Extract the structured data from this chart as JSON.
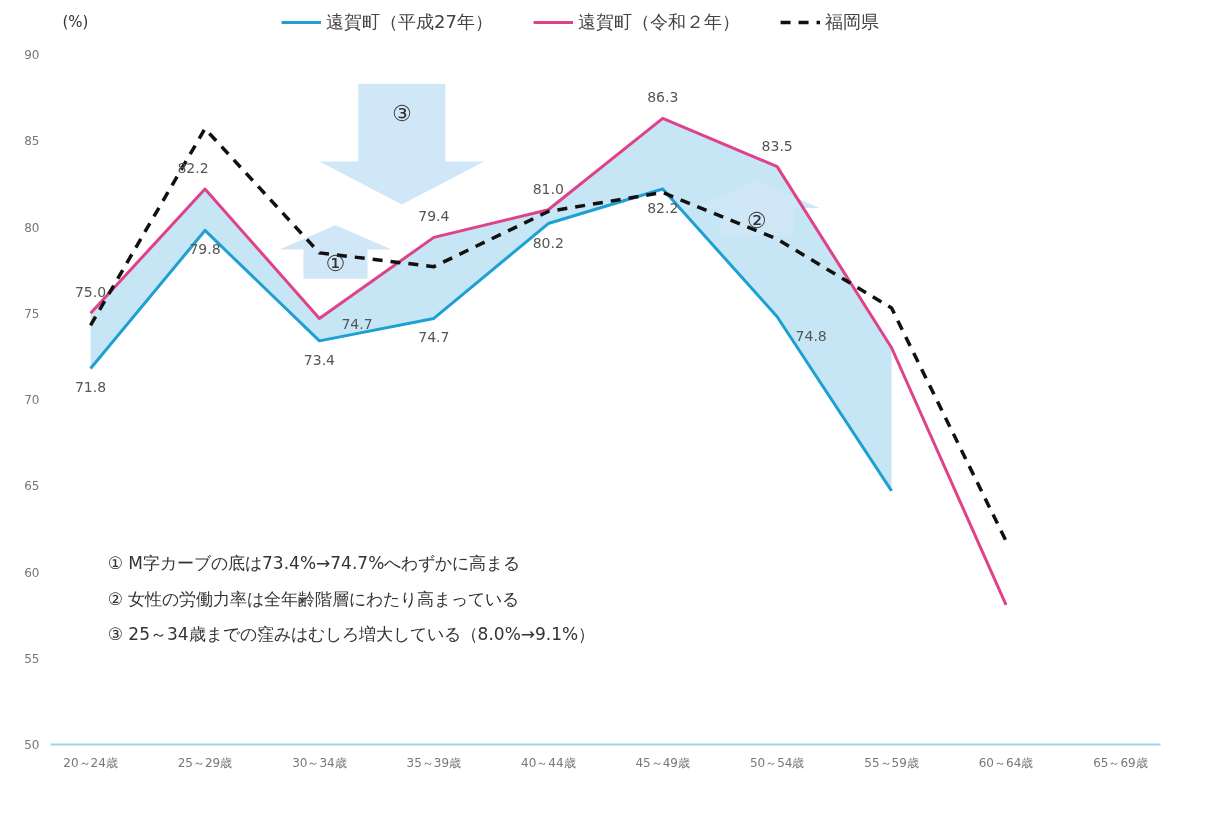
{
  "chart_data": {
    "type": "line",
    "ylabel": "(%)",
    "categories": [
      "20～24歳",
      "25～29歳",
      "30～34歳",
      "35～39歳",
      "40～44歳",
      "45～49歳",
      "50～54歳",
      "55～59歳",
      "60～64歳",
      "65～69歳"
    ],
    "series": [
      {
        "name": "遠賀町（平成27年）",
        "color": "#1ea0d2",
        "values": [
          71.8,
          79.8,
          73.4,
          74.7,
          80.2,
          82.2,
          74.8,
          64.7,
          null,
          null
        ],
        "value_labels": [
          "71.8",
          "79.8",
          "73.4",
          "74.7",
          "80.2",
          "82.2",
          "74.8",
          null,
          null,
          null
        ]
      },
      {
        "name": "遠賀町（令和２年）",
        "color": "#e0428a",
        "values": [
          75.0,
          82.2,
          74.7,
          79.4,
          81.0,
          86.3,
          83.5,
          73.0,
          58.1,
          null
        ],
        "value_labels": [
          "75.0",
          "82.2",
          "74.7",
          "79.4",
          "81.0",
          "86.3",
          "83.5",
          null,
          null,
          null
        ],
        "lower": [
          71.8,
          79.8,
          73.4,
          74.7,
          80.2,
          82.2,
          74.8,
          64.7,
          null,
          null
        ],
        "upper": [
          75.0,
          82.2,
          74.7,
          79.4,
          81.0,
          86.3,
          83.5,
          73.0,
          null,
          null
        ]
      },
      {
        "name": "福岡県",
        "color": "#111111",
        "line_style": "dashed",
        "values": [
          74.3,
          85.7,
          78.5,
          77.7,
          80.9,
          82.0,
          79.3,
          75.3,
          61.8,
          null
        ]
      }
    ],
    "ylim": [
      50,
      90
    ],
    "yticks": [
      50,
      55,
      60,
      65,
      70,
      75,
      80,
      85,
      90
    ],
    "grid": false,
    "legend": "top",
    "marker": "none",
    "annotations": [
      "①",
      "②",
      "③",
      "① M字カーブの底は73.4%→74.7%へわずかに高まる",
      "② 女性の労働力率は全年齢階層にわたり高まっている",
      "③ 25～34歳までの窪みはむしろ増大している（8.0%→9.1%）"
    ]
  }
}
